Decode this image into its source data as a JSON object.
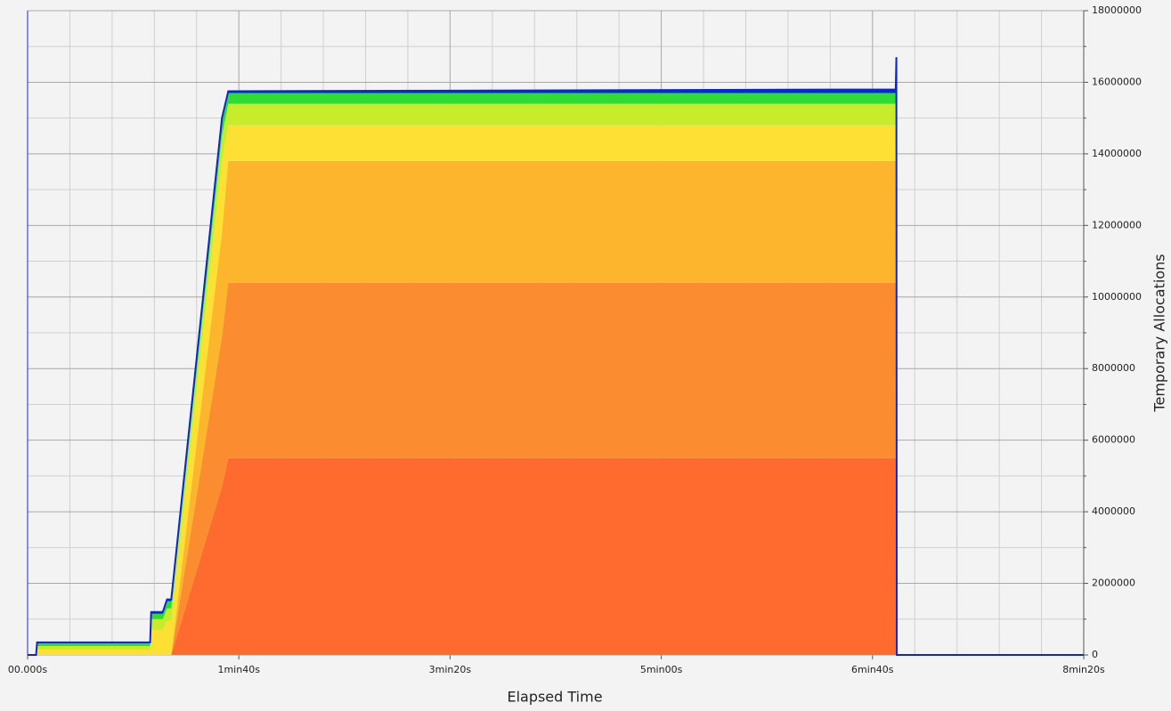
{
  "chart_data": {
    "type": "stacked-area",
    "xlabel": "Elapsed Time",
    "ylabel": "Temporary Allocations",
    "x": [
      0,
      4,
      4.5,
      58,
      58.5,
      64,
      66,
      68,
      92,
      95,
      411,
      411.3,
      411.5,
      500
    ],
    "series": [
      {
        "color": "#ff6a2f",
        "values": [
          0,
          0,
          0,
          0,
          0,
          0,
          0,
          0,
          4700000,
          5500000,
          5500000,
          5500000,
          0,
          0
        ]
      },
      {
        "color": "#fc8c30",
        "values": [
          0,
          0,
          0,
          0,
          0,
          0,
          0,
          0,
          4200000,
          4900000,
          4900000,
          4900000,
          0,
          0
        ]
      },
      {
        "color": "#fdb52e",
        "values": [
          0,
          0,
          0,
          0,
          0,
          0,
          0,
          0,
          2900000,
          3400000,
          3400000,
          3400000,
          0,
          0
        ]
      },
      {
        "color": "#fde033",
        "values": [
          0,
          0,
          150000,
          150000,
          700000,
          700000,
          950000,
          950000,
          2000000,
          1000000,
          1000000,
          1000000,
          0,
          0
        ]
      },
      {
        "color": "#c6ec2c",
        "values": [
          0,
          0,
          100000,
          100000,
          300000,
          300000,
          350000,
          350000,
          700000,
          600000,
          600000,
          600000,
          0,
          0
        ]
      },
      {
        "color": "#2fdc34",
        "values": [
          0,
          0,
          80000,
          80000,
          150000,
          150000,
          200000,
          200000,
          400000,
          300000,
          300000,
          1200000,
          0,
          0
        ]
      },
      {
        "color": "#0a28d0",
        "values": [
          0,
          0,
          20000,
          20000,
          50000,
          50000,
          50000,
          50000,
          100000,
          50000,
          100000,
          100000,
          0,
          0
        ]
      }
    ],
    "xlim": [
      0,
      500
    ],
    "xticks": [
      {
        "value": 0,
        "label": "00.000s"
      },
      {
        "value": 100,
        "label": "1min40s"
      },
      {
        "value": 200,
        "label": "3min20s"
      },
      {
        "value": 300,
        "label": "5min00s"
      },
      {
        "value": 400,
        "label": "6min40s"
      },
      {
        "value": 500,
        "label": "8min20s"
      }
    ],
    "xminorticks": [
      20,
      40,
      60,
      80,
      120,
      140,
      160,
      180,
      220,
      240,
      260,
      280,
      320,
      340,
      360,
      380,
      420,
      440,
      460,
      480
    ],
    "ylim": [
      0,
      18000000
    ],
    "yticks": [
      0,
      2000000,
      4000000,
      6000000,
      8000000,
      10000000,
      12000000,
      14000000,
      16000000,
      18000000
    ],
    "yminorticks": [
      1000000,
      3000000,
      5000000,
      7000000,
      9000000,
      11000000,
      13000000,
      15000000,
      17000000
    ],
    "grid": true
  }
}
